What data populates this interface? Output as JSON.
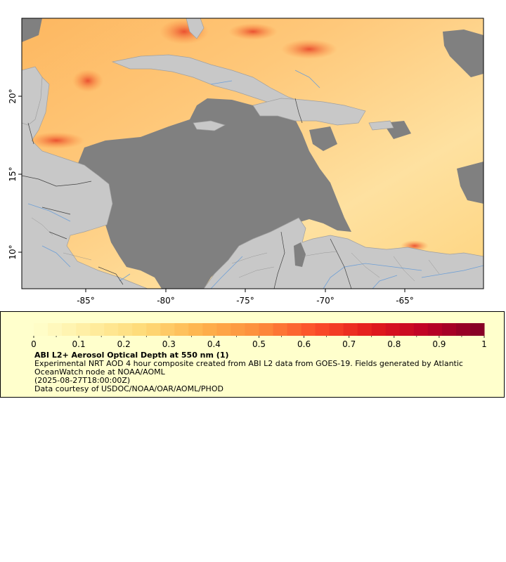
{
  "map": {
    "lon_ticks": [
      "-85°",
      "-80°",
      "-75°",
      "-70°",
      "-65°"
    ],
    "lat_ticks": [
      "20°",
      "15°",
      "10°"
    ],
    "colors": {
      "water_nodata": "#808080",
      "land": "#c8c8c8",
      "coastline": "#a0a0a0",
      "rivers": "#6e9fd6",
      "borders": "#404040"
    }
  },
  "legend": {
    "ticks": [
      "0",
      "0.1",
      "0.2",
      "0.3",
      "0.4",
      "0.5",
      "0.6",
      "0.7",
      "0.8",
      "0.9",
      "1"
    ],
    "colormap": [
      "#ffffcc",
      "#ffeda0",
      "#fed976",
      "#feb24c",
      "#fd8d3c",
      "#fc4e2a",
      "#e31a1c",
      "#bd0026",
      "#800026"
    ],
    "title": "ABI L2+ Aerosol Optical Depth at 550 nm (1)",
    "description": "Experimental NRT AOD 4 hour composite created from ABI L2 data from GOES-19. Fields generated by Atlantic OceanWatch node at NOAA/AOML",
    "timestamp": "(2025-08-27T18:00:00Z)",
    "credit": "Data courtesy of USDOC/NOAA/OAR/AOML/PHOD"
  }
}
